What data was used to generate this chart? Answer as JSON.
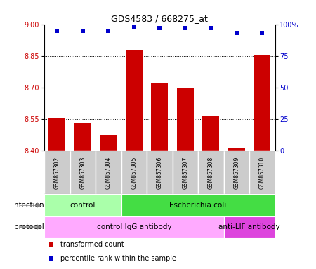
{
  "title": "GDS4583 / 668275_at",
  "samples": [
    "GSM857302",
    "GSM857303",
    "GSM857304",
    "GSM857305",
    "GSM857306",
    "GSM857307",
    "GSM857308",
    "GSM857309",
    "GSM857310"
  ],
  "bar_values": [
    8.555,
    8.535,
    8.475,
    8.875,
    8.72,
    8.695,
    8.565,
    8.415,
    8.855
  ],
  "dot_percentiles": [
    95,
    95,
    95,
    98,
    97,
    97,
    97,
    93,
    93
  ],
  "ylim_left": [
    8.4,
    9.0
  ],
  "ylim_right": [
    0,
    100
  ],
  "yticks_left": [
    8.4,
    8.55,
    8.7,
    8.85,
    9.0
  ],
  "yticks_right": [
    0,
    25,
    50,
    75,
    100
  ],
  "bar_color": "#cc0000",
  "dot_color": "#0000cc",
  "sample_box_color": "#cccccc",
  "infection_groups": [
    {
      "label": "control",
      "start": 0,
      "end": 3,
      "color": "#aaffaa"
    },
    {
      "label": "Escherichia coli",
      "start": 3,
      "end": 9,
      "color": "#44dd44"
    }
  ],
  "protocol_groups": [
    {
      "label": "control IgG antibody",
      "start": 0,
      "end": 7,
      "color": "#ffaaff"
    },
    {
      "label": "anti-LIF antibody",
      "start": 7,
      "end": 9,
      "color": "#dd44dd"
    }
  ],
  "legend_items": [
    {
      "label": "transformed count",
      "color": "#cc0000"
    },
    {
      "label": "percentile rank within the sample",
      "color": "#0000cc"
    }
  ],
  "infection_label": "infection",
  "protocol_label": "protocol"
}
